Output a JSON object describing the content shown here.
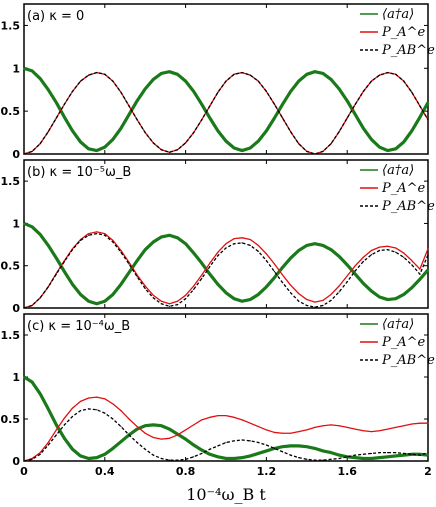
{
  "chart_data": [
    {
      "type": "line",
      "panel_label": "(a) κ = 0",
      "x": [
        0,
        0.04,
        0.08,
        0.12,
        0.16,
        0.2,
        0.24,
        0.28,
        0.32,
        0.36,
        0.4,
        0.44,
        0.48,
        0.52,
        0.56,
        0.6,
        0.64,
        0.68,
        0.72,
        0.76,
        0.8,
        0.84,
        0.88,
        0.92,
        0.96,
        1.0,
        1.04,
        1.08,
        1.12,
        1.16,
        1.2,
        1.24,
        1.28,
        1.32,
        1.36,
        1.4,
        1.44,
        1.48,
        1.52,
        1.56,
        1.6,
        1.64,
        1.68,
        1.72,
        1.76,
        1.8,
        1.84,
        1.88,
        1.92,
        1.96,
        2.0
      ],
      "series": [
        {
          "name": "⟨a†a⟩",
          "color": "#1a7a1a",
          "values": [
            1.0,
            0.97,
            0.88,
            0.75,
            0.6,
            0.43,
            0.27,
            0.14,
            0.06,
            0.04,
            0.08,
            0.17,
            0.3,
            0.46,
            0.62,
            0.76,
            0.87,
            0.94,
            0.96,
            0.93,
            0.85,
            0.73,
            0.58,
            0.42,
            0.27,
            0.15,
            0.07,
            0.04,
            0.07,
            0.15,
            0.27,
            0.42,
            0.58,
            0.73,
            0.85,
            0.93,
            0.96,
            0.94,
            0.87,
            0.76,
            0.62,
            0.46,
            0.3,
            0.17,
            0.08,
            0.04,
            0.06,
            0.14,
            0.27,
            0.43,
            0.6
          ]
        },
        {
          "name": "P_A^e",
          "color": "#e01010",
          "values": [
            0.0,
            0.03,
            0.12,
            0.26,
            0.42,
            0.58,
            0.73,
            0.85,
            0.92,
            0.95,
            0.93,
            0.85,
            0.72,
            0.56,
            0.4,
            0.25,
            0.13,
            0.05,
            0.02,
            0.05,
            0.13,
            0.25,
            0.4,
            0.56,
            0.72,
            0.85,
            0.93,
            0.95,
            0.92,
            0.85,
            0.73,
            0.58,
            0.42,
            0.26,
            0.12,
            0.03,
            0.0,
            0.03,
            0.12,
            0.26,
            0.42,
            0.58,
            0.73,
            0.85,
            0.92,
            0.95,
            0.93,
            0.85,
            0.72,
            0.56,
            0.4
          ]
        },
        {
          "name": "P_AB^e",
          "color": "#000000",
          "dashed": true,
          "values": [
            0.0,
            0.03,
            0.12,
            0.26,
            0.42,
            0.58,
            0.73,
            0.85,
            0.92,
            0.95,
            0.93,
            0.85,
            0.72,
            0.56,
            0.4,
            0.25,
            0.13,
            0.05,
            0.02,
            0.05,
            0.13,
            0.25,
            0.4,
            0.56,
            0.72,
            0.85,
            0.93,
            0.95,
            0.92,
            0.85,
            0.73,
            0.58,
            0.42,
            0.26,
            0.12,
            0.03,
            0.0,
            0.03,
            0.12,
            0.26,
            0.42,
            0.58,
            0.73,
            0.85,
            0.92,
            0.95,
            0.93,
            0.85,
            0.72,
            0.56,
            0.4
          ]
        }
      ],
      "xlim": [
        0,
        2
      ],
      "ylim": [
        0,
        1.75
      ],
      "yticks": [
        "0",
        "0.5",
        "1",
        "1.5"
      ],
      "legend": "top-right"
    },
    {
      "type": "line",
      "panel_label": "(b) κ = 10⁻⁵ω_B",
      "x": [
        0,
        0.04,
        0.08,
        0.12,
        0.16,
        0.2,
        0.24,
        0.28,
        0.32,
        0.36,
        0.4,
        0.44,
        0.48,
        0.52,
        0.56,
        0.6,
        0.64,
        0.68,
        0.72,
        0.76,
        0.8,
        0.84,
        0.88,
        0.92,
        0.96,
        1.0,
        1.04,
        1.08,
        1.12,
        1.16,
        1.2,
        1.24,
        1.28,
        1.32,
        1.36,
        1.4,
        1.44,
        1.48,
        1.52,
        1.56,
        1.6,
        1.64,
        1.68,
        1.72,
        1.76,
        1.8,
        1.84,
        1.88,
        1.92,
        1.96,
        2.0
      ],
      "series": [
        {
          "name": "⟨a†a⟩",
          "color": "#1a7a1a",
          "values": [
            1.0,
            0.96,
            0.87,
            0.74,
            0.59,
            0.43,
            0.28,
            0.16,
            0.08,
            0.05,
            0.08,
            0.16,
            0.28,
            0.42,
            0.56,
            0.69,
            0.78,
            0.84,
            0.86,
            0.83,
            0.76,
            0.65,
            0.53,
            0.4,
            0.28,
            0.18,
            0.11,
            0.08,
            0.1,
            0.16,
            0.25,
            0.36,
            0.48,
            0.59,
            0.68,
            0.74,
            0.76,
            0.74,
            0.69,
            0.61,
            0.51,
            0.4,
            0.29,
            0.2,
            0.13,
            0.1,
            0.11,
            0.16,
            0.24,
            0.34,
            0.45
          ]
        },
        {
          "name": "P_A^e",
          "color": "#e01010",
          "values": [
            0.0,
            0.03,
            0.12,
            0.25,
            0.41,
            0.56,
            0.7,
            0.81,
            0.88,
            0.9,
            0.88,
            0.8,
            0.68,
            0.54,
            0.39,
            0.26,
            0.15,
            0.08,
            0.05,
            0.08,
            0.15,
            0.26,
            0.39,
            0.53,
            0.66,
            0.76,
            0.82,
            0.83,
            0.81,
            0.74,
            0.64,
            0.52,
            0.39,
            0.27,
            0.17,
            0.1,
            0.07,
            0.09,
            0.16,
            0.26,
            0.38,
            0.5,
            0.6,
            0.68,
            0.72,
            0.73,
            0.71,
            0.65,
            0.56,
            0.46,
            0.7
          ]
        },
        {
          "name": "P_AB^e",
          "color": "#000000",
          "dashed": true,
          "values": [
            0.0,
            0.03,
            0.12,
            0.25,
            0.4,
            0.55,
            0.69,
            0.8,
            0.86,
            0.88,
            0.86,
            0.78,
            0.66,
            0.52,
            0.37,
            0.23,
            0.12,
            0.05,
            0.02,
            0.04,
            0.11,
            0.22,
            0.35,
            0.49,
            0.62,
            0.71,
            0.76,
            0.77,
            0.74,
            0.67,
            0.56,
            0.43,
            0.3,
            0.18,
            0.08,
            0.03,
            0.01,
            0.03,
            0.09,
            0.19,
            0.31,
            0.44,
            0.55,
            0.63,
            0.68,
            0.69,
            0.66,
            0.6,
            0.51,
            0.4,
            0.63
          ]
        }
      ],
      "xlim": [
        0,
        2
      ],
      "ylim": [
        0,
        1.75
      ],
      "yticks": [
        "0",
        "0.5",
        "1",
        "1.5"
      ],
      "legend": "top-right"
    },
    {
      "type": "line",
      "panel_label": "(c) κ = 10⁻⁴ω_B",
      "x": [
        0,
        0.04,
        0.08,
        0.12,
        0.16,
        0.2,
        0.24,
        0.28,
        0.32,
        0.36,
        0.4,
        0.44,
        0.48,
        0.52,
        0.56,
        0.6,
        0.64,
        0.68,
        0.72,
        0.76,
        0.8,
        0.84,
        0.88,
        0.92,
        0.96,
        1.0,
        1.04,
        1.08,
        1.12,
        1.16,
        1.2,
        1.24,
        1.28,
        1.32,
        1.36,
        1.4,
        1.44,
        1.48,
        1.52,
        1.56,
        1.6,
        1.64,
        1.68,
        1.72,
        1.76,
        1.8,
        1.84,
        1.88,
        1.92,
        1.96,
        2.0
      ],
      "series": [
        {
          "name": "⟨a†a⟩",
          "color": "#1a7a1a",
          "values": [
            1.0,
            0.94,
            0.8,
            0.62,
            0.43,
            0.27,
            0.14,
            0.06,
            0.03,
            0.04,
            0.08,
            0.15,
            0.23,
            0.31,
            0.38,
            0.42,
            0.43,
            0.42,
            0.38,
            0.32,
            0.26,
            0.19,
            0.13,
            0.08,
            0.05,
            0.03,
            0.03,
            0.04,
            0.06,
            0.09,
            0.12,
            0.15,
            0.17,
            0.18,
            0.18,
            0.17,
            0.15,
            0.12,
            0.1,
            0.07,
            0.05,
            0.04,
            0.03,
            0.03,
            0.04,
            0.05,
            0.06,
            0.07,
            0.08,
            0.08,
            0.07
          ]
        },
        {
          "name": "P_A^e",
          "color": "#e01010",
          "values": [
            0.0,
            0.03,
            0.1,
            0.22,
            0.37,
            0.51,
            0.63,
            0.71,
            0.75,
            0.76,
            0.74,
            0.68,
            0.6,
            0.5,
            0.41,
            0.33,
            0.28,
            0.26,
            0.27,
            0.31,
            0.37,
            0.43,
            0.49,
            0.52,
            0.54,
            0.54,
            0.52,
            0.49,
            0.45,
            0.41,
            0.37,
            0.34,
            0.33,
            0.33,
            0.35,
            0.37,
            0.4,
            0.42,
            0.43,
            0.42,
            0.4,
            0.38,
            0.36,
            0.35,
            0.36,
            0.38,
            0.4,
            0.42,
            0.44,
            0.45,
            0.45
          ]
        },
        {
          "name": "P_AB^e",
          "color": "#000000",
          "dashed": true,
          "values": [
            0.0,
            0.02,
            0.08,
            0.19,
            0.31,
            0.43,
            0.53,
            0.6,
            0.62,
            0.61,
            0.57,
            0.5,
            0.41,
            0.31,
            0.22,
            0.14,
            0.07,
            0.03,
            0.01,
            0.01,
            0.02,
            0.05,
            0.09,
            0.14,
            0.18,
            0.22,
            0.24,
            0.25,
            0.24,
            0.22,
            0.19,
            0.15,
            0.11,
            0.07,
            0.04,
            0.02,
            0.01,
            0.01,
            0.02,
            0.03,
            0.05,
            0.07,
            0.08,
            0.09,
            0.1,
            0.1,
            0.1,
            0.09,
            0.08,
            0.07,
            0.1
          ]
        }
      ],
      "xlim": [
        0,
        2
      ],
      "ylim": [
        0,
        1.75
      ],
      "yticks": [
        "0",
        "0.5",
        "1",
        "1.5"
      ],
      "xticks": [
        "0",
        "0.4",
        "0.8",
        "1.2",
        "1.6",
        "2"
      ],
      "xlabel": "10⁻⁴ω_B t",
      "legend": "top-right"
    }
  ]
}
